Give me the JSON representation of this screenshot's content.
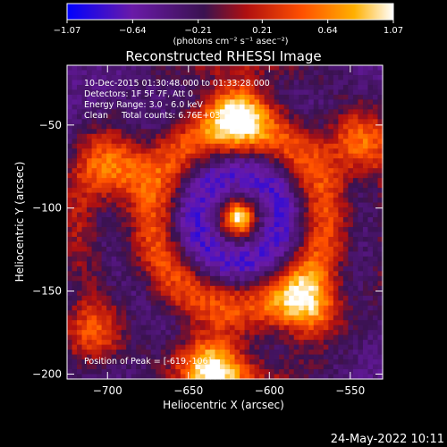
{
  "chart_data": {
    "type": "heatmap",
    "title": "Reconstructed RHESSI Image",
    "xlabel": "Heliocentric X (arcsec)",
    "ylabel": "Heliocentric Y (arcsec)",
    "xlim": [
      -725,
      -530
    ],
    "ylim": [
      -203,
      -14
    ],
    "x_ticks": [
      -700,
      -650,
      -600,
      -550
    ],
    "x_tick_labels": [
      "−700",
      "−650",
      "−600",
      "−550"
    ],
    "y_ticks": [
      -50,
      -100,
      -150,
      -200
    ],
    "y_tick_labels": [
      "−50",
      "−100",
      "−150",
      "−200"
    ],
    "colorbar": {
      "range": [
        -1.07,
        1.07
      ],
      "ticks": [
        -1.07,
        -0.64,
        -0.21,
        0.21,
        0.64,
        1.07
      ],
      "tick_labels": [
        "−1.07",
        "−0.64",
        "−0.21",
        "0.21",
        "0.64",
        "1.07"
      ],
      "unit_label": "(photons cm⁻² s⁻¹ asec⁻²)",
      "colormap": [
        "#0000ff",
        "#6a1aa8",
        "#5a1f63",
        "#ff3000",
        "#ffb000",
        "#ffffff"
      ]
    },
    "annotations": {
      "time_range": "10-Dec-2015 01:30:48.000 to 01:33:28.000",
      "detectors": "Detectors: 1F 5F 7F, Att 0",
      "energy": "Energy Range: 3.0 - 6.0 keV",
      "clean_line": "Clean     Total counts: 6.76E+03",
      "peak_label": "Position of Peak = [-619,-106]"
    },
    "peak": {
      "x": -619,
      "y": -106
    },
    "structures": {
      "ring_radius_arcsec": 54,
      "secondary_blobs": [
        {
          "x": -620,
          "y": -42,
          "amp": 0.75
        },
        {
          "x": -635,
          "y": -195,
          "amp": 0.85
        },
        {
          "x": -575,
          "y": -160,
          "amp": 0.75
        },
        {
          "x": -695,
          "y": -75,
          "amp": 0.65
        },
        {
          "x": -545,
          "y": -60,
          "amp": 0.6
        },
        {
          "x": -710,
          "y": -175,
          "amp": 0.55
        }
      ]
    }
  },
  "footer": {
    "date": "24-May-2022 10:11"
  }
}
